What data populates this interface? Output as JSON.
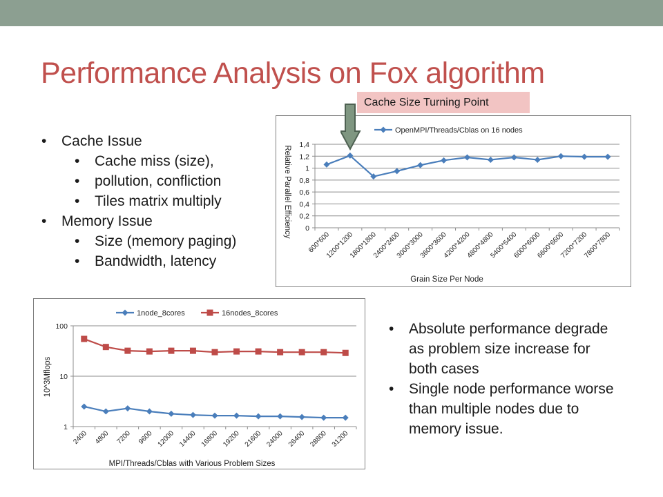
{
  "slide": {
    "title": "Performance Analysis on Fox algorithm",
    "callout": "Cache Size Turning Point",
    "left_bullets": [
      {
        "level": 1,
        "text": "Cache Issue"
      },
      {
        "level": 2,
        "text": "Cache miss (size),"
      },
      {
        "level": 2,
        "text": "pollution, confliction"
      },
      {
        "level": 2,
        "text": "Tiles matrix multiply"
      },
      {
        "level": 1,
        "text": "Memory Issue"
      },
      {
        "level": 2,
        "text": "Size (memory paging)"
      },
      {
        "level": 2,
        "text": "Bandwidth, latency"
      }
    ],
    "right_bullets": [
      "Absolute performance degrade as problem size increase for both cases",
      "Single node performance worse than multiple nodes due to memory issue."
    ]
  },
  "colors": {
    "topbar": "#8c9f91",
    "title": "#c0504d",
    "callout_bg": "#f2c4c3",
    "series_blue": "#4a7ebb",
    "series_red": "#be4b48",
    "grid": "#8c8c8c",
    "arrow_fill": "#7f9681",
    "arrow_stroke": "#4e6152"
  },
  "chart_data": [
    {
      "type": "line",
      "categories": [
        "600*600",
        "1200*1200",
        "1800*1800",
        "2400*2400",
        "3000*3000",
        "3600*3600",
        "4200*4200",
        "4800*4800",
        "5400*5400",
        "6000*6000",
        "6600*6600",
        "7200*7200",
        "7800*7800"
      ],
      "series": [
        {
          "name": "OpenMPI/Threads/Cblas on 16 nodes",
          "values": [
            1.06,
            1.21,
            0.86,
            0.95,
            1.05,
            1.13,
            1.18,
            1.14,
            1.18,
            1.14,
            1.2,
            1.19,
            1.19
          ]
        }
      ],
      "xlabel": "Grain Size Per Node",
      "ylabel": "Relative Parallel Efficiency",
      "ylim": [
        0,
        1.4
      ],
      "yticks": [
        "0",
        "0,2",
        "0,4",
        "0,6",
        "0,8",
        "1",
        "1,2",
        "1,4"
      ],
      "grid": true,
      "legend": "top"
    },
    {
      "type": "line",
      "categories": [
        "2400",
        "4800",
        "7200",
        "9600",
        "12000",
        "14400",
        "16800",
        "19200",
        "21600",
        "24000",
        "26400",
        "28800",
        "31200"
      ],
      "series": [
        {
          "name": "1node_8cores",
          "values": [
            2.5,
            2.0,
            2.3,
            2.0,
            1.8,
            1.7,
            1.65,
            1.65,
            1.6,
            1.6,
            1.55,
            1.5,
            1.5
          ]
        },
        {
          "name": "16nodes_8cores",
          "values": [
            55,
            38,
            32,
            31,
            32,
            32,
            30,
            31,
            31,
            30,
            30,
            30,
            29
          ]
        }
      ],
      "xlabel": "MPI/Threads/Cblas with Various Problem Sizes",
      "ylabel": "10^3Mflops",
      "yscale": "log",
      "ylim": [
        1,
        100
      ],
      "yticks": [
        "1",
        "10",
        "100"
      ],
      "grid": true,
      "legend": "top"
    }
  ]
}
